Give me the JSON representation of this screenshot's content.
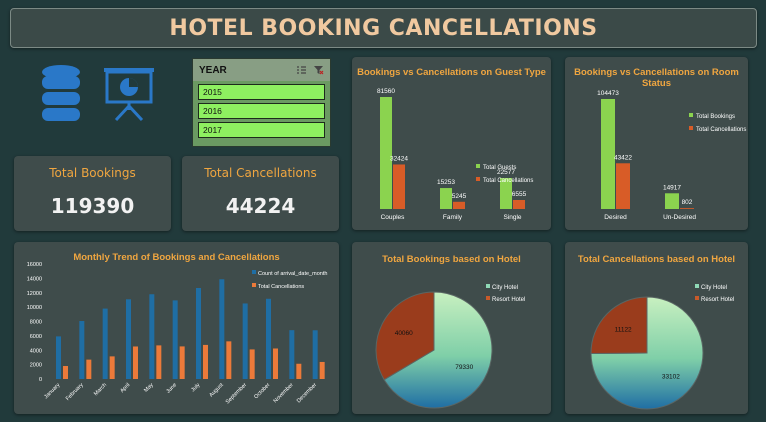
{
  "header": {
    "title": "HOTEL BOOKING CANCELLATIONS"
  },
  "kpis": {
    "total_bookings_label": "Total Bookings",
    "total_bookings_value": "119390",
    "total_cancellations_label": "Total Cancellations",
    "total_cancellations_value": "44224"
  },
  "year_slicer": {
    "label": "YEAR",
    "items": [
      "2015",
      "2016",
      "2017"
    ]
  },
  "icons": [
    "database-icon",
    "presentation-icon"
  ],
  "colors": {
    "accent": "#f0a640",
    "green": "#8bd34f",
    "orange": "#d85c27",
    "blue": "#1f6ea4",
    "bg": "#213a3b",
    "panel": "#3f4c4b"
  },
  "chart_data": [
    {
      "type": "bar",
      "title": "Bookings vs Cancellations on Guest Type",
      "categories": [
        "Couples",
        "Family",
        "Single"
      ],
      "series": [
        {
          "name": "Total Guests",
          "values": [
            81560,
            15253,
            22577
          ]
        },
        {
          "name": "Total Cancellations",
          "values": [
            32424,
            5245,
            6555
          ]
        }
      ],
      "legend": "right",
      "grid": false
    },
    {
      "type": "bar",
      "title": "Bookings vs Cancellations on Room Status",
      "categories": [
        "Desired",
        "Un-Desired"
      ],
      "series": [
        {
          "name": "Total Bookings",
          "values": [
            104473,
            14917
          ]
        },
        {
          "name": "Total Cancellations",
          "values": [
            43422,
            802
          ]
        }
      ],
      "legend": "right",
      "grid": false
    },
    {
      "type": "bar",
      "title": "Monthly Trend of Bookings and Cancellations",
      "categories": [
        "January",
        "February",
        "March",
        "April",
        "May",
        "June",
        "July",
        "August",
        "September",
        "October",
        "November",
        "December"
      ],
      "series": [
        {
          "name": "Count of arrival_date_month",
          "values": [
            5929,
            8068,
            9794,
            11089,
            11791,
            10939,
            12661,
            13877,
            10508,
            11160,
            6794,
            6780
          ]
        },
        {
          "name": "Total Cancellations",
          "values": [
            1807,
            2696,
            3149,
            4524,
            4677,
            4535,
            4742,
            5239,
            4116,
            4246,
            2122,
            2371
          ]
        }
      ],
      "ylim": [
        0,
        16000
      ],
      "yticks": [
        "0",
        "2000",
        "4000",
        "6000",
        "8000",
        "10000",
        "12000",
        "14000",
        "16000"
      ],
      "legend": "top-right",
      "grid": false
    },
    {
      "type": "pie",
      "title": "Total Bookings based on Hotel",
      "categories": [
        "City Hotel",
        "Resort Hotel"
      ],
      "values": [
        79330,
        40060
      ],
      "legend": "top-right"
    },
    {
      "type": "pie",
      "title": "Total Cancellations based on Hotel",
      "categories": [
        "City Hotel",
        "Resort Hotel"
      ],
      "values": [
        33102,
        11122
      ],
      "legend": "top-right"
    }
  ]
}
